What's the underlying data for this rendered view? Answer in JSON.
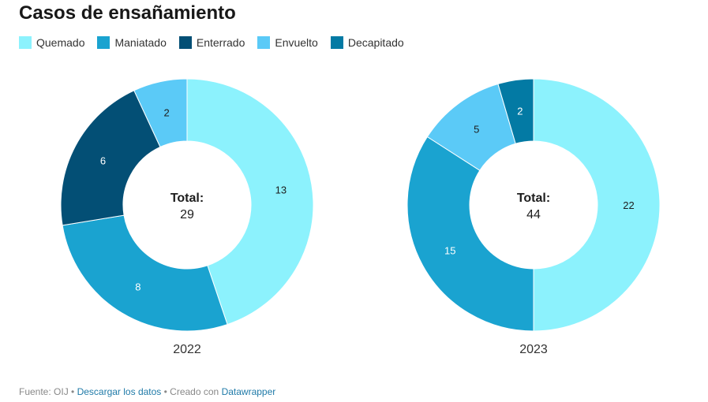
{
  "title": "Casos de ensañamiento",
  "chart_data": {
    "type": "pie",
    "title": "Casos de ensañamiento",
    "legend": [
      {
        "name": "Quemado",
        "color": "#8cf2fd"
      },
      {
        "name": "Maniatado",
        "color": "#1aa3d0"
      },
      {
        "name": "Enterrado",
        "color": "#034f75"
      },
      {
        "name": "Envuelto",
        "color": "#5bcaf7"
      },
      {
        "name": "Decapitado",
        "color": "#037aa4"
      }
    ],
    "charts": [
      {
        "label": "2022",
        "total_label": "Total:",
        "total": "29",
        "slices": [
          {
            "name": "Quemado",
            "value": 13
          },
          {
            "name": "Maniatado",
            "value": 8
          },
          {
            "name": "Enterrado",
            "value": 6
          },
          {
            "name": "Envuelto",
            "value": 2
          }
        ]
      },
      {
        "label": "2023",
        "total_label": "Total:",
        "total": "44",
        "slices": [
          {
            "name": "Quemado",
            "value": 22
          },
          {
            "name": "Maniatado",
            "value": 15
          },
          {
            "name": "Envuelto",
            "value": 5
          },
          {
            "name": "Decapitado",
            "value": 2
          }
        ]
      }
    ]
  },
  "footer": {
    "source": "Fuente: OIJ",
    "sep": " • ",
    "download": "Descargar los datos",
    "created": "Creado con",
    "tool": "Datawrapper"
  }
}
